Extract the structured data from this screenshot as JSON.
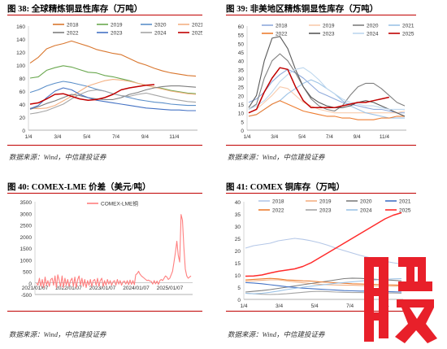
{
  "panels": [
    {
      "title": "图 38: 全球精炼铜显性库存（万吨）",
      "source": "数据来源：Wind，中信建投证券",
      "chart_data": {
        "type": "line",
        "ylim": [
          0,
          160
        ],
        "yticks": [
          "0",
          "20",
          "40",
          "60",
          "80",
          "100",
          "120",
          "140",
          "160"
        ],
        "xticks": [
          "1/4",
          "3/4",
          "5/4",
          "7/4",
          "9/4",
          "11/4"
        ],
        "legend_position": "top",
        "series": [
          {
            "name": "2018",
            "color": "#d9762e",
            "values": [
              103,
              112,
              125,
              130,
              133,
              137,
              133,
              129,
              124,
              121,
              118,
              116,
              110,
              104,
              100,
              95,
              91,
              88,
              86,
              84,
              83
            ]
          },
          {
            "name": "2019",
            "color": "#6aa84f",
            "values": [
              80,
              82,
              92,
              96,
              99,
              97,
              93,
              89,
              88,
              84,
              82,
              79,
              76,
              72,
              69,
              66,
              64,
              61,
              59,
              57,
              56
            ]
          },
          {
            "name": "2020",
            "color": "#5b8fc9",
            "values": [
              58,
              62,
              68,
              72,
              75,
              73,
              70,
              67,
              63,
              60,
              56,
              53,
              50,
              47,
              45,
              43,
              42,
              40,
              39,
              38,
              38
            ]
          },
          {
            "name": "2021",
            "color": "#f4b183",
            "values": [
              34,
              33,
              34,
              38,
              45,
              52,
              60,
              68,
              72,
              76,
              78,
              77,
              75,
              72,
              69,
              66,
              63,
              60,
              58,
              56,
              55
            ]
          },
          {
            "name": "2022",
            "color": "#7f7f7f",
            "values": [
              32,
              36,
              41,
              45,
              50,
              55,
              53,
              50,
              48,
              47,
              47,
              50,
              55,
              58,
              62,
              65,
              67,
              68,
              68,
              67,
              66
            ]
          },
          {
            "name": "2023",
            "color": "#4472c4",
            "values": [
              33,
              38,
              50,
              60,
              65,
              62,
              55,
              50,
              46,
              44,
              42,
              40,
              38,
              36,
              34,
              33,
              32,
              31,
              31,
              30,
              30
            ]
          },
          {
            "name": "2024",
            "color": "#a5a5a5",
            "values": [
              25,
              27,
              30,
              35,
              40,
              48,
              55,
              60,
              62,
              60,
              56,
              53,
              52,
              55,
              57,
              54,
              51,
              48,
              46,
              44,
              43
            ]
          },
          {
            "name": "2025",
            "color": "#c00000",
            "values": [
              40,
              42,
              48,
              55,
              56,
              52,
              48,
              46,
              47,
              50,
              55,
              62,
              65,
              67,
              69,
              70,
              null,
              null,
              null,
              null,
              null
            ]
          }
        ]
      }
    },
    {
      "title": "图 39: 非美地区精炼铜显性库存（万吨）",
      "source": "数据来源：Wind，中信建投证券",
      "chart_data": {
        "type": "line",
        "ylim": [
          0,
          60
        ],
        "yticks": [
          "0",
          "5",
          "10",
          "15",
          "20",
          "25",
          "30",
          "35",
          "40",
          "45",
          "50",
          "55",
          "60"
        ],
        "xticks": [
          "1/4",
          "3/4",
          "5/4",
          "7/4",
          "9/4",
          "11/4"
        ],
        "legend_position": "top",
        "series": [
          {
            "name": "2018",
            "color": "#8faadc",
            "values": [
              16,
              18,
              22,
              28,
              32,
              35,
              33,
              30,
              26,
              22,
              20,
              18,
              16,
              15,
              14,
              13,
              12,
              12,
              11,
              10,
              10
            ]
          },
          {
            "name": "2019",
            "color": "#f8cbad",
            "values": [
              10,
              12,
              16,
              20,
              25,
              24,
              20,
              16,
              14,
              12,
              11,
              10,
              10,
              10,
              10,
              10,
              10,
              10,
              10,
              10,
              11
            ]
          },
          {
            "name": "2020",
            "color": "#7f7f7f",
            "values": [
              12,
              15,
              30,
              40,
              44,
              40,
              33,
              25,
              18,
              14,
              12,
              11,
              14,
              20,
              25,
              27,
              27,
              24,
              20,
              16,
              14
            ]
          },
          {
            "name": "2021",
            "color": "#9dc3e6",
            "values": [
              8,
              9,
              12,
              15,
              17,
              21,
              24,
              27,
              29,
              27,
              24,
              21,
              17,
              14,
              12,
              10,
              9,
              8,
              7,
              7,
              7
            ]
          },
          {
            "name": "2022",
            "color": "#ed7d31",
            "values": [
              8,
              9,
              12,
              15,
              17,
              15,
              13,
              11,
              10,
              9,
              8,
              8,
              7,
              7,
              6,
              6,
              6,
              7,
              7,
              8,
              8
            ]
          },
          {
            "name": "2023",
            "color": "#595959",
            "values": [
              13,
              20,
              40,
              53,
              54,
              47,
              35,
              25,
              19,
              16,
              14,
              13,
              13,
              14,
              16,
              17,
              16,
              14,
              12,
              10,
              8
            ]
          },
          {
            "name": "2024",
            "color": "#bdd7ee",
            "values": [
              12,
              14,
              17,
              22,
              28,
              32,
              35,
              36,
              33,
              29,
              24,
              21,
              18,
              16,
              15,
              14,
              14,
              13,
              12,
              12,
              12
            ]
          },
          {
            "name": "2025",
            "color": "#c00000",
            "values": [
              10,
              12,
              22,
              30,
              36,
              35,
              25,
              17,
              13,
              13,
              13,
              13,
              14,
              15,
              16,
              16,
              17,
              18,
              19,
              null,
              null
            ]
          }
        ]
      }
    },
    {
      "title": "图 40: COMEX-LME 价差（美元/吨）",
      "source": "数据来源：Wind，中信建投证券",
      "chart_data": {
        "type": "line",
        "ylim": [
          -500,
          3500
        ],
        "yticks": [
          "-500",
          "0",
          "500",
          "1000",
          "1500",
          "2000",
          "2500",
          "3000",
          "3500"
        ],
        "xticks": [
          "2021/01/07",
          "2022/01/07",
          "2023/01/07",
          "2024/01/07",
          "2025/01/07"
        ],
        "legend_position": "top",
        "series": [
          {
            "name": "COMEX-LME铜",
            "color": "#ff7f7f",
            "values": [
              0,
              -100,
              200,
              -150,
              150,
              -200,
              250,
              -100,
              100,
              -150,
              150,
              200,
              -100,
              300,
              -200,
              350,
              100,
              -150,
              300,
              -200,
              200,
              -100,
              150,
              -150,
              100,
              200,
              -150,
              250,
              -200,
              150,
              300,
              -100,
              200,
              -150,
              150,
              -200,
              100,
              -100,
              150,
              -150,
              100,
              150,
              -100,
              200,
              -150,
              100,
              200,
              -150,
              100,
              -100,
              150,
              -50,
              100,
              -100,
              50,
              100,
              -100,
              150,
              -50,
              100,
              -100,
              50,
              80,
              -50,
              100,
              -80,
              120,
              -60,
              100,
              -80,
              350,
              400,
              500,
              380,
              300,
              250,
              200,
              150,
              100,
              120,
              80,
              60,
              -50,
              100,
              -40,
              80,
              -60,
              100,
              150,
              100,
              200,
              300,
              250,
              150,
              200,
              350,
              500,
              900,
              1300,
              1800,
              1200,
              900,
              2950,
              2700,
              1500,
              600,
              300,
              200,
              250,
              300
            ]
          }
        ]
      }
    },
    {
      "title": "图 41: COMEX 铜库存（万吨）",
      "source": "数据来源：Wind，中信建投证券",
      "chart_data": {
        "type": "line",
        "ylim": [
          0,
          40
        ],
        "yticks": [
          "0",
          "5",
          "10",
          "15",
          "20",
          "25",
          "30",
          "35",
          "40"
        ],
        "xticks": [
          "1/4",
          "3/4",
          "5/4",
          "7/4",
          "9/4"
        ],
        "legend_position": "top",
        "series": [
          {
            "name": "2018",
            "color": "#b4c7e7",
            "values": [
              21,
              22,
              22.5,
              23,
              24,
              24.5,
              25,
              24.6,
              24,
              23.2,
              22.2,
              21,
              20,
              19,
              18,
              17.2,
              16.3,
              15.6,
              15,
              14.5
            ]
          },
          {
            "name": "2019",
            "color": "#f4b183",
            "values": [
              7.5,
              7.6,
              7.8,
              8,
              8,
              7.6,
              7.2,
              6.8,
              6.5,
              6.2,
              6,
              5.9,
              5.8,
              5.8,
              5.7,
              5.6,
              5.5,
              5.5,
              5.4,
              5.4
            ]
          },
          {
            "name": "2020",
            "color": "#7f7f7f",
            "values": [
              3,
              3.3,
              3.6,
              4,
              4.5,
              5,
              5.5,
              6,
              6.5,
              7,
              7.5,
              8,
              8.5,
              8.7,
              8.6,
              8.4,
              8.2,
              8,
              7.8,
              7.6
            ]
          },
          {
            "name": "2021",
            "color": "#4472c4",
            "values": [
              6.9,
              6.7,
              6.4,
              6,
              5.6,
              5.2,
              4.9,
              4.6,
              4.4,
              4.2,
              4,
              3.8,
              3.6,
              3.5,
              3.4,
              3.4,
              3.3,
              3.2,
              3.1,
              3
            ]
          },
          {
            "name": "2022",
            "color": "#ed7d31",
            "values": [
              8,
              8.2,
              8.4,
              8.6,
              8.4,
              8,
              7.8,
              7.6,
              7.5,
              7.2,
              7,
              6.8,
              6.6,
              6.4,
              6.3,
              6.2,
              6.1,
              6,
              5.9,
              5.8
            ]
          },
          {
            "name": "2023",
            "color": "#a5a5a5",
            "values": [
              2.5,
              2.3,
              2.1,
              2,
              2.1,
              2.3,
              2.6,
              2.9,
              3.2,
              3.3,
              3.2,
              3,
              2.9,
              2.8,
              2.8,
              2.7,
              2.7,
              2.6,
              2.6,
              2.5
            ]
          },
          {
            "name": "2024",
            "color": "#9dc3e6",
            "values": [
              2.5,
              2.3,
              2.5,
              2.9,
              3.4,
              4,
              4.5,
              5,
              5.4,
              5.8,
              6.2,
              6.6,
              6.9,
              7.2,
              7.5,
              7.8,
              8,
              8.2,
              8.4,
              8.5
            ]
          },
          {
            "name": "2025",
            "color": "#ff2b2b",
            "values": [
              9.5,
              9.6,
              10,
              10.8,
              11.5,
              12,
              12.5,
              13.5,
              15,
              17,
              19,
              21,
              23,
              25,
              27,
              29,
              31,
              33,
              34.5,
              35.5
            ]
          }
        ]
      }
    }
  ],
  "watermark": {
    "char": "股",
    "color": "#e8202a"
  }
}
